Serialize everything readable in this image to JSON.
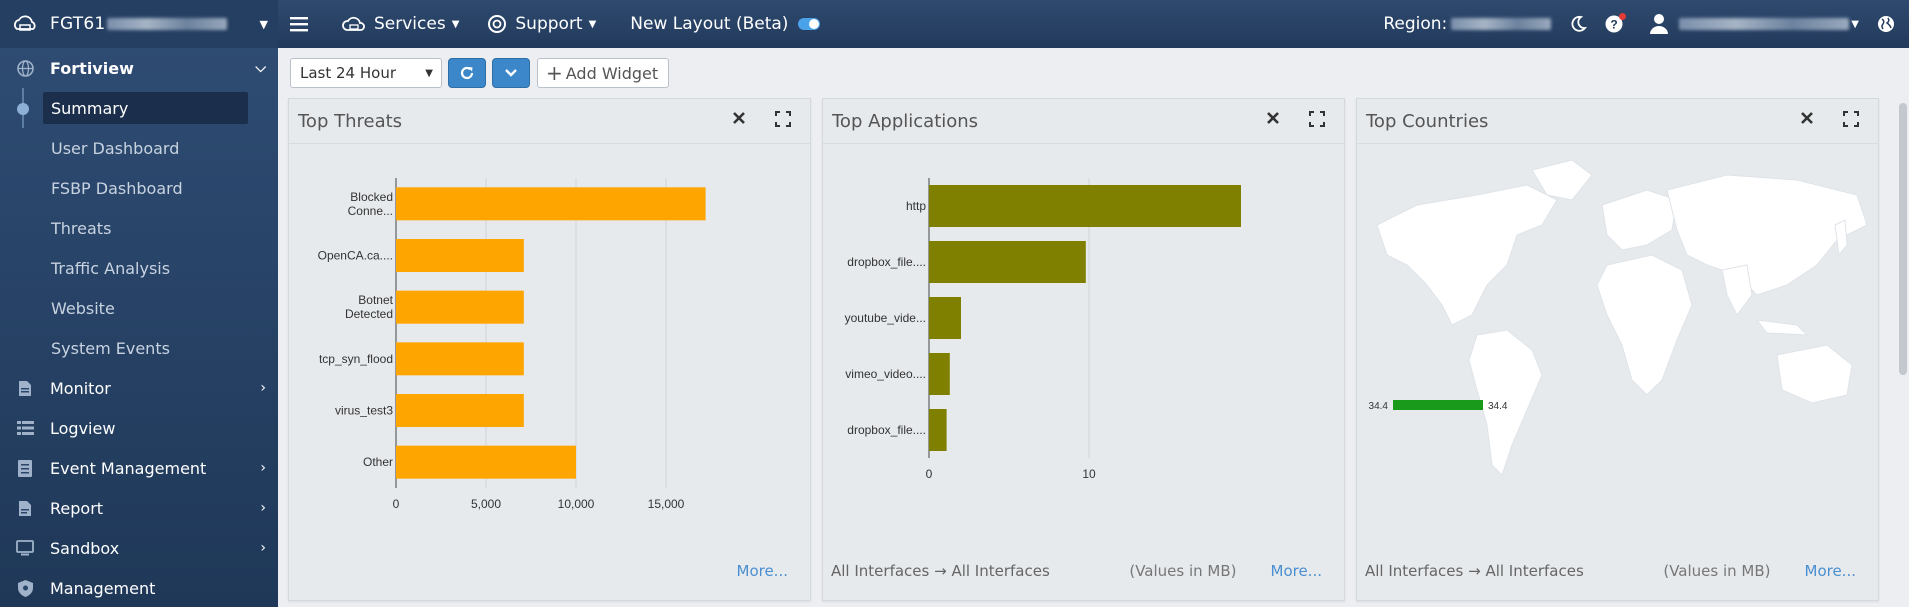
{
  "topbar": {
    "device_name": "FGT61",
    "services": "Services",
    "support": "Support",
    "new_layout": "New Layout (Beta)",
    "region_label": "Region:"
  },
  "sidebar": {
    "sections": [
      {
        "label": "Fortiview",
        "icon": "globe-icon",
        "expanded": true
      },
      {
        "label": "Monitor",
        "icon": "document-icon"
      },
      {
        "label": "Logview",
        "icon": "list-icon"
      },
      {
        "label": "Event Management",
        "icon": "event-icon"
      },
      {
        "label": "Report",
        "icon": "report-icon"
      },
      {
        "label": "Sandbox",
        "icon": "monitor-icon"
      },
      {
        "label": "Management",
        "icon": "shield-icon"
      }
    ],
    "fortiview_items": [
      "Summary",
      "User Dashboard",
      "FSBP Dashboard",
      "Threats",
      "Traffic Analysis",
      "Website",
      "System Events"
    ]
  },
  "toolbar": {
    "time_range": "Last 24 Hour",
    "add_widget": "Add Widget"
  },
  "widgets": {
    "threats": {
      "title": "Top Threats",
      "more": "More..."
    },
    "applications": {
      "title": "Top Applications",
      "footer": "All Interfaces → All Interfaces",
      "values_note": "(Values in MB)",
      "more": "More..."
    },
    "countries": {
      "title": "Top Countries",
      "footer": "All Interfaces → All Interfaces",
      "values_note": "(Values in MB)",
      "more": "More...",
      "legend_min": "34.4",
      "legend_max": "34.4",
      "legend_color": "#1a9a1a"
    }
  },
  "chart_data": [
    {
      "type": "bar",
      "orientation": "horizontal",
      "title": "Top Threats",
      "categories": [
        [
          "Blocked",
          "Conne..."
        ],
        [
          "OpenCA.ca...."
        ],
        [
          "Botnet",
          "Detected"
        ],
        [
          "tcp_syn_flood"
        ],
        [
          "virus_test3"
        ],
        [
          "Other"
        ]
      ],
      "values": [
        17200,
        7100,
        7100,
        7100,
        7100,
        10000
      ],
      "xlim": [
        0,
        20000
      ],
      "xticks": [
        0,
        5000,
        10000,
        15000
      ],
      "xtick_labels": [
        "0",
        "5,000",
        "10,000",
        "15,000"
      ],
      "color": "#ffa500",
      "grid": true
    },
    {
      "type": "bar",
      "orientation": "horizontal",
      "title": "Top Applications",
      "categories": [
        [
          "http"
        ],
        [
          "dropbox_file...."
        ],
        [
          "youtube_vide..."
        ],
        [
          "vimeo_video...."
        ],
        [
          "dropbox_file...."
        ]
      ],
      "values": [
        19.5,
        9.8,
        2.0,
        1.3,
        1.1
      ],
      "xlim": [
        0,
        20
      ],
      "xticks": [
        0,
        10
      ],
      "xtick_labels": [
        "0",
        "10"
      ],
      "color": "#808000",
      "grid": true
    }
  ]
}
